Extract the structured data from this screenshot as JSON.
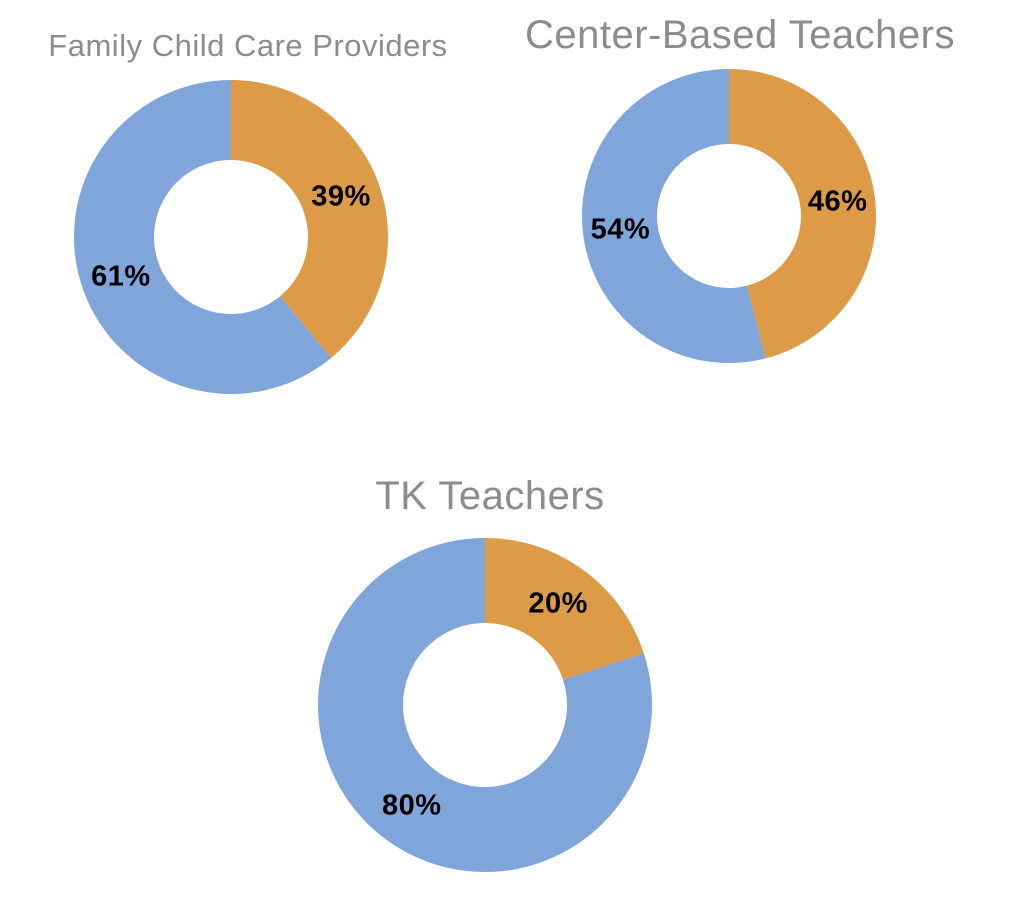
{
  "page": {
    "background": "#ffffff"
  },
  "colors": {
    "orange": "#DD9A47",
    "blue": "#7FA5DA",
    "title_gray": "#8C8C8C",
    "label_black": "#000000"
  },
  "chart_data": [
    {
      "type": "pie",
      "subtype": "donut",
      "title": "Family Child Care Providers",
      "start_angle_deg": 0,
      "direction": "clockwise",
      "hole_ratio": 0.49,
      "legend": "none",
      "categories": [
        "orange-segment",
        "blue-segment"
      ],
      "slices": [
        {
          "label": "39%",
          "value": 39,
          "color": "orange"
        },
        {
          "label": "61%",
          "value": 61,
          "color": "blue"
        }
      ]
    },
    {
      "type": "pie",
      "subtype": "donut",
      "title": "Center-Based Teachers",
      "start_angle_deg": 0,
      "direction": "clockwise",
      "hole_ratio": 0.49,
      "legend": "none",
      "categories": [
        "orange-segment",
        "blue-segment"
      ],
      "slices": [
        {
          "label": "46%",
          "value": 46,
          "color": "orange"
        },
        {
          "label": "54%",
          "value": 54,
          "color": "blue"
        }
      ]
    },
    {
      "type": "pie",
      "subtype": "donut",
      "title": "TK Teachers",
      "start_angle_deg": 0,
      "direction": "clockwise",
      "hole_ratio": 0.49,
      "legend": "none",
      "categories": [
        "orange-segment",
        "blue-segment"
      ],
      "slices": [
        {
          "label": "20%",
          "value": 20,
          "color": "orange"
        },
        {
          "label": "80%",
          "value": 80,
          "color": "blue"
        }
      ]
    }
  ]
}
